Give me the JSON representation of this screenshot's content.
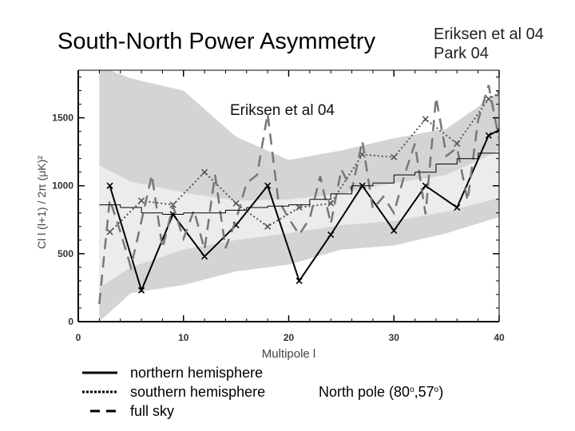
{
  "slide": {
    "title": "South-North Power Asymmetry",
    "refs": [
      "Eriksen et al 04",
      "Park 04"
    ],
    "note": "Eriksen et al 04"
  },
  "legend": [
    {
      "label": "northern hemisphere",
      "style": "solid"
    },
    {
      "label": "southern hemisphere",
      "style": "dotted"
    },
    {
      "label": "full sky",
      "style": "dashed"
    }
  ],
  "pole": {
    "prefix": "North pole (80",
    "deg1": "o",
    "mid": ",57",
    "deg2": "o",
    "suffix": ")"
  },
  "chart_data": {
    "type": "line",
    "xlabel": "Multipole l",
    "ylabel": "Cl l (l+1) / 2π (μK)²",
    "xlim": [
      0,
      40
    ],
    "ylim": [
      0,
      1850
    ],
    "xticks": [
      0,
      10,
      20,
      30,
      40
    ],
    "yticks": [
      0,
      500,
      1000,
      1500
    ],
    "colors": {
      "outer_band": "#d4d4d4",
      "inner_band": "#ececec",
      "north": "#000000",
      "south": "#555555",
      "fullsky": "#777777",
      "model": "#000000"
    },
    "bands": {
      "x": [
        2,
        5,
        10,
        15,
        20,
        25,
        30,
        35,
        40
      ],
      "outer_low": [
        0,
        210,
        270,
        370,
        420,
        530,
        560,
        650,
        770
      ],
      "inner_low": [
        250,
        400,
        530,
        600,
        650,
        710,
        740,
        810,
        910
      ],
      "inner_high": [
        1150,
        1030,
        950,
        890,
        900,
        940,
        1020,
        1080,
        1260
      ],
      "outer_high": [
        1880,
        1790,
        1700,
        1360,
        1190,
        1260,
        1350,
        1420,
        1690
      ]
    },
    "series": [
      {
        "name": "northern hemisphere",
        "style": "solid",
        "x": [
          3,
          6,
          9,
          12,
          15,
          18,
          21,
          24,
          27,
          30,
          33,
          36,
          39,
          40
        ],
        "y": [
          1000,
          230,
          790,
          480,
          710,
          1000,
          300,
          640,
          1000,
          670,
          1000,
          840,
          1370,
          1410
        ]
      },
      {
        "name": "southern hemisphere",
        "style": "dotted",
        "x": [
          3,
          6,
          9,
          12,
          15,
          18,
          21,
          24,
          27,
          30,
          33,
          36,
          39,
          40
        ],
        "y": [
          660,
          890,
          860,
          1100,
          870,
          700,
          840,
          870,
          1230,
          1210,
          1490,
          1310,
          1640,
          1680
        ]
      },
      {
        "name": "full sky",
        "style": "dashed",
        "x": [
          2,
          3,
          4,
          5,
          6,
          7,
          8,
          9,
          10,
          11,
          12,
          13,
          14,
          15,
          16,
          17,
          18,
          19,
          20,
          21,
          22,
          23,
          24,
          25,
          26,
          27,
          28,
          29,
          30,
          31,
          32,
          33,
          34,
          35,
          36,
          37,
          38,
          39,
          40
        ],
        "y": [
          130,
          900,
          660,
          400,
          740,
          1080,
          540,
          850,
          610,
          820,
          530,
          1080,
          540,
          750,
          1020,
          1080,
          1530,
          900,
          760,
          640,
          760,
          1070,
          720,
          1120,
          970,
          1330,
          830,
          920,
          800,
          1080,
          1310,
          790,
          1650,
          1220,
          1280,
          890,
          1480,
          1740,
          1340
        ]
      },
      {
        "name": "model",
        "style": "step",
        "x": [
          2,
          4,
          6,
          8,
          10,
          12,
          14,
          16,
          18,
          20,
          22,
          24,
          26,
          28,
          30,
          32,
          34,
          36,
          38,
          40
        ],
        "y": [
          860,
          840,
          800,
          790,
          800,
          800,
          820,
          840,
          850,
          860,
          900,
          940,
          1000,
          1020,
          1080,
          1100,
          1160,
          1200,
          1240,
          1220
        ]
      }
    ]
  }
}
